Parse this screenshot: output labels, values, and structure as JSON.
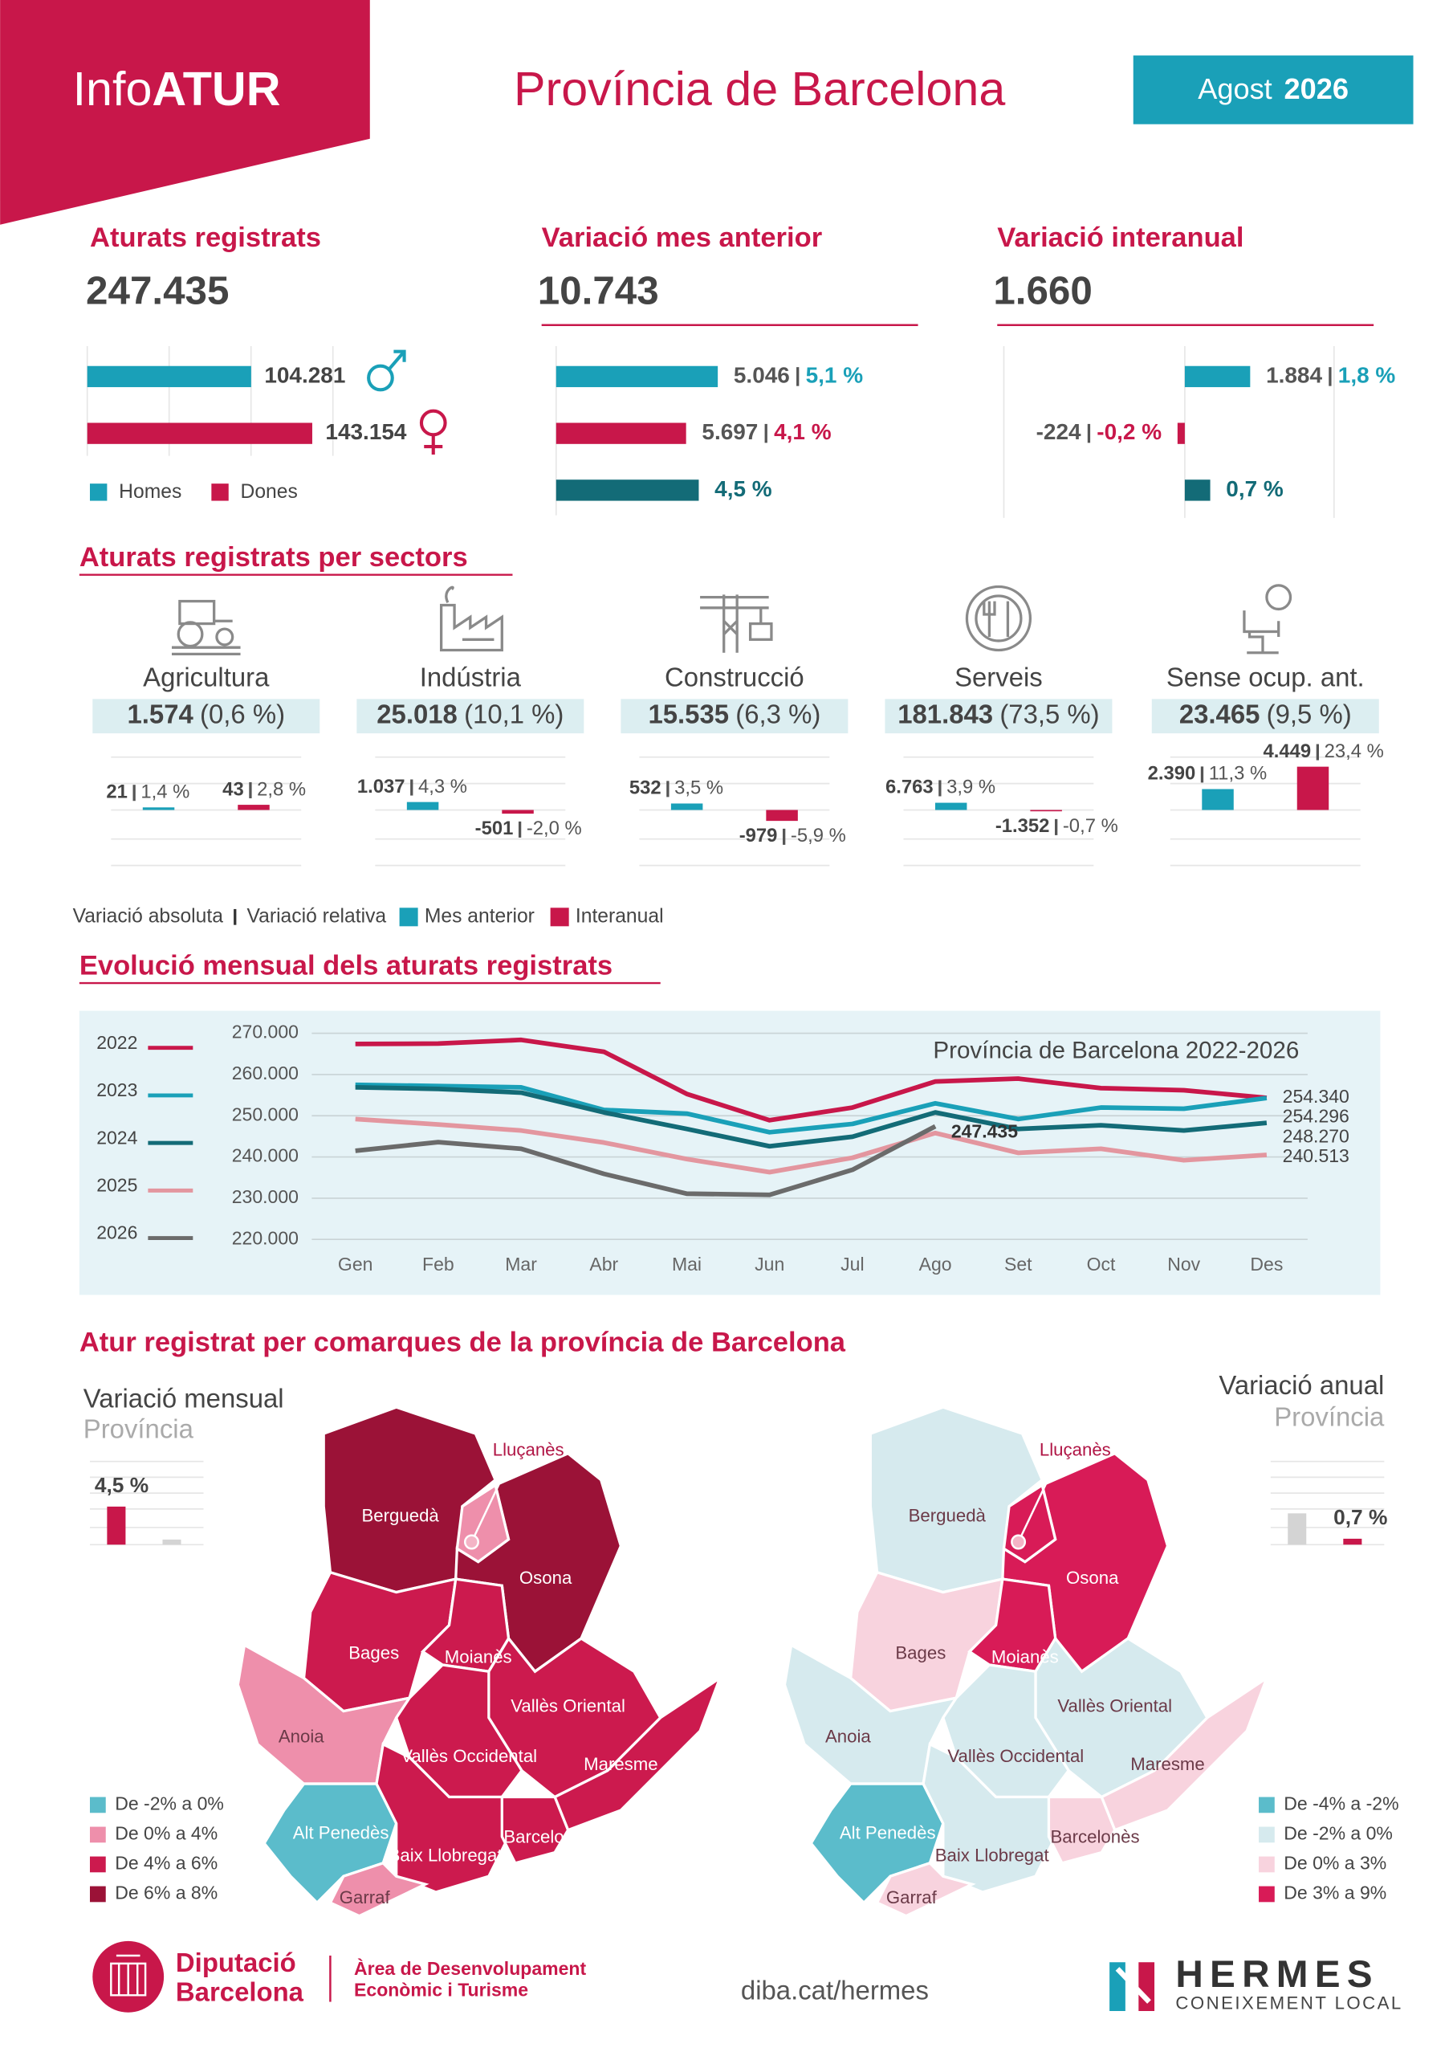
{
  "header": {
    "brand": [
      "Info",
      "ATUR"
    ],
    "title": "Província de Barcelona",
    "month": "Agost",
    "year": "2026"
  },
  "kpis": [
    {
      "title": "Aturats registrats",
      "value": "247.435",
      "bars": [
        {
          "name": "Homes",
          "value": 104281,
          "value_label": "104.281",
          "color": "#1aa0b8"
        },
        {
          "name": "Dones",
          "value": 143154,
          "value_label": "143.154",
          "color": "#c8174a"
        }
      ]
    },
    {
      "title": "Variació mes anterior",
      "value": "10.743",
      "bars": [
        {
          "value": "5.046",
          "pct": 5.1,
          "pct_label": "5,1 %",
          "color": "#1aa0b8"
        },
        {
          "value": "5.697",
          "pct": 4.1,
          "pct_label": "4,1 %",
          "color": "#c8174a"
        },
        {
          "pct": 4.5,
          "pct_label": "4,5 %",
          "color": "#136b77"
        }
      ]
    },
    {
      "title": "Variació interanual",
      "value": "1.660",
      "bars": [
        {
          "value": "1.884",
          "pct": 1.8,
          "pct_label": "1,8 %",
          "color": "#1aa0b8"
        },
        {
          "value": "-224",
          "pct": -0.2,
          "pct_label": "-0,2 %",
          "color": "#c8174a"
        },
        {
          "pct": 0.7,
          "pct_label": "0,7 %",
          "color": "#136b77"
        }
      ]
    }
  ],
  "sectors": {
    "title": "Aturats registrats per sectors",
    "items": [
      {
        "name": "Agricultura",
        "value": "1.574",
        "share": "(0,6 %)",
        "month": {
          "value": "21",
          "pct": 1.4,
          "pct_label": "1,4 %"
        },
        "year": {
          "value": "43",
          "pct": 2.8,
          "pct_label": "2,8 %"
        }
      },
      {
        "name": "Indústria",
        "value": "25.018",
        "share": "(10,1 %)",
        "month": {
          "value": "1.037",
          "pct": 4.3,
          "pct_label": "4,3 %"
        },
        "year": {
          "value": "-501",
          "pct": -2.0,
          "pct_label": "-2,0 %"
        }
      },
      {
        "name": "Construcció",
        "value": "15.535",
        "share": "(6,3 %)",
        "month": {
          "value": "532",
          "pct": 3.5,
          "pct_label": "3,5 %"
        },
        "year": {
          "value": "-979",
          "pct": -5.9,
          "pct_label": "-5,9 %"
        }
      },
      {
        "name": "Serveis",
        "value": "181.843",
        "share": "(73,5 %)",
        "month": {
          "value": "6.763",
          "pct": 3.9,
          "pct_label": "3,9 %"
        },
        "year": {
          "value": "-1.352",
          "pct": -0.7,
          "pct_label": "-0,7 %"
        }
      },
      {
        "name": "Sense ocup. ant.",
        "value": "23.465",
        "share": "(9,5 %)",
        "month": {
          "value": "2.390",
          "pct": 11.3,
          "pct_label": "11,3 %"
        },
        "year": {
          "value": "4.449",
          "pct": 23.4,
          "pct_label": "23,4 %"
        }
      }
    ],
    "legend": {
      "labels": [
        "Variació absoluta",
        "Variació relativa"
      ],
      "series": [
        {
          "name": "Mes anterior",
          "color": "#1aa0b8"
        },
        {
          "name": "Interanual",
          "color": "#c8174a"
        }
      ]
    }
  },
  "chart_data": {
    "type": "line",
    "title": "Evolució mensual dels aturats registrats",
    "subtitle": "Província de Barcelona 2022-2026",
    "categories": [
      "Gen",
      "Feb",
      "Mar",
      "Abr",
      "Mai",
      "Jun",
      "Jul",
      "Ago",
      "Set",
      "Oct",
      "Nov",
      "Des"
    ],
    "ylim": [
      220000,
      270000
    ],
    "yticks": [
      {
        "value": 220000,
        "label": "220.000"
      },
      {
        "value": 230000,
        "label": "230.000"
      },
      {
        "value": 240000,
        "label": "240.000"
      },
      {
        "value": 250000,
        "label": "250.000"
      },
      {
        "value": 260000,
        "label": "260.000"
      },
      {
        "value": 270000,
        "label": "270.000"
      }
    ],
    "grid": true,
    "series": [
      {
        "name": "2022",
        "color": "#c8174a",
        "values": [
          267400,
          267500,
          268400,
          265500,
          255300,
          248900,
          252000,
          258300,
          259000,
          256700,
          256200,
          254340
        ],
        "value_labels": [
          null,
          null,
          null,
          null,
          null,
          null,
          null,
          null,
          null,
          null,
          null,
          "254.340"
        ]
      },
      {
        "name": "2023",
        "color": "#1aa0b8",
        "values": [
          257500,
          257200,
          256900,
          251400,
          250500,
          246000,
          248000,
          253000,
          249200,
          252000,
          251700,
          254296
        ],
        "value_labels": [
          null,
          null,
          null,
          null,
          null,
          null,
          null,
          null,
          null,
          null,
          null,
          "254.296"
        ]
      },
      {
        "name": "2024",
        "color": "#136b77",
        "values": [
          256900,
          256500,
          255600,
          250800,
          246800,
          242600,
          244900,
          250800,
          246800,
          247700,
          246400,
          248270
        ],
        "value_labels": [
          null,
          null,
          null,
          null,
          null,
          null,
          null,
          null,
          null,
          null,
          null,
          "248.270"
        ]
      },
      {
        "name": "2025",
        "color": "#e3969f",
        "values": [
          249200,
          247900,
          246400,
          243500,
          239500,
          236300,
          239800,
          245800,
          241000,
          242000,
          239200,
          240513
        ],
        "value_labels": [
          null,
          null,
          null,
          null,
          null,
          null,
          null,
          null,
          null,
          null,
          null,
          "240.513"
        ]
      },
      {
        "name": "2026",
        "color": "#6b6b6b",
        "values": [
          241500,
          243600,
          242000,
          235900,
          231100,
          230800,
          236900,
          247435,
          null,
          null,
          null,
          null
        ],
        "value_labels": [
          null,
          null,
          null,
          null,
          null,
          null,
          null,
          "247.435",
          null,
          null,
          null,
          null
        ]
      }
    ]
  },
  "maps": {
    "title": "Atur registrat per comarques de la província de Barcelona",
    "panels": [
      {
        "title": "Variació mensual",
        "subtitle": "Província",
        "bars": [
          {
            "value": 4.5,
            "value_label": "4,5 %",
            "color": "#c8174a"
          },
          {
            "value": 0.6,
            "color": "#d4d4d4"
          }
        ],
        "legend": [
          {
            "label": "De -2% a 0%",
            "color": "#5bbccb"
          },
          {
            "label": "De 0% a 4%",
            "color": "#ee8fab"
          },
          {
            "label": "De 4% a 6%",
            "color": "#cc1a4e"
          },
          {
            "label": "De 6% a 8%",
            "color": "#9b1237"
          }
        ],
        "regions": [
          {
            "name": "Berguedà",
            "color": "#9b1237"
          },
          {
            "name": "Lluçanès",
            "color": "#ee8fab"
          },
          {
            "name": "Osona",
            "color": "#9b1237"
          },
          {
            "name": "Bages",
            "color": "#cc1a4e"
          },
          {
            "name": "Moianès",
            "color": "#cc1a4e"
          },
          {
            "name": "Vallès Oriental",
            "color": "#cc1a4e"
          },
          {
            "name": "Anoia",
            "color": "#ee8fab"
          },
          {
            "name": "Vallès Occidental",
            "color": "#cc1a4e"
          },
          {
            "name": "Maresme",
            "color": "#cc1a4e"
          },
          {
            "name": "Alt Penedès",
            "color": "#5bbccb"
          },
          {
            "name": "Baix Llobregat",
            "color": "#cc1a4e"
          },
          {
            "name": "Barcelonès",
            "color": "#cc1a4e"
          },
          {
            "name": "Garraf",
            "color": "#ee8fab"
          }
        ]
      },
      {
        "title": "Variació anual",
        "subtitle": "Província",
        "bars": [
          {
            "value": 3.7,
            "color": "#d4d4d4"
          },
          {
            "value": 0.7,
            "value_label": "0,7 %",
            "color": "#c8174a"
          }
        ],
        "legend": [
          {
            "label": "De -4% a -2%",
            "color": "#5bbccb"
          },
          {
            "label": "De -2% a 0%",
            "color": "#d6eaee"
          },
          {
            "label": "De 0% a 3%",
            "color": "#f8d3de"
          },
          {
            "label": "De 3% a 9%",
            "color": "#d81b57"
          }
        ],
        "regions": [
          {
            "name": "Berguedà",
            "color": "#d6eaee"
          },
          {
            "name": "Lluçanès",
            "color": "#d81b57"
          },
          {
            "name": "Osona",
            "color": "#d81b57"
          },
          {
            "name": "Bages",
            "color": "#f8d3de"
          },
          {
            "name": "Moianès",
            "color": "#d81b57"
          },
          {
            "name": "Vallès Oriental",
            "color": "#d6eaee"
          },
          {
            "name": "Anoia",
            "color": "#d6eaee"
          },
          {
            "name": "Vallès Occidental",
            "color": "#d6eaee"
          },
          {
            "name": "Maresme",
            "color": "#f8d3de"
          },
          {
            "name": "Alt Penedès",
            "color": "#5bbccb"
          },
          {
            "name": "Baix Llobregat",
            "color": "#d6eaee"
          },
          {
            "name": "Barcelonès",
            "color": "#f8d3de"
          },
          {
            "name": "Garraf",
            "color": "#f8d3de"
          }
        ]
      }
    ]
  },
  "footer": {
    "org": [
      "Diputació",
      "Barcelona"
    ],
    "area": [
      "Àrea de Desenvolupament",
      "Econòmic i Turisme"
    ],
    "url": "diba.cat/hermes",
    "brand": "HERMES",
    "tagline": "CONEIXEMENT LOCAL"
  }
}
